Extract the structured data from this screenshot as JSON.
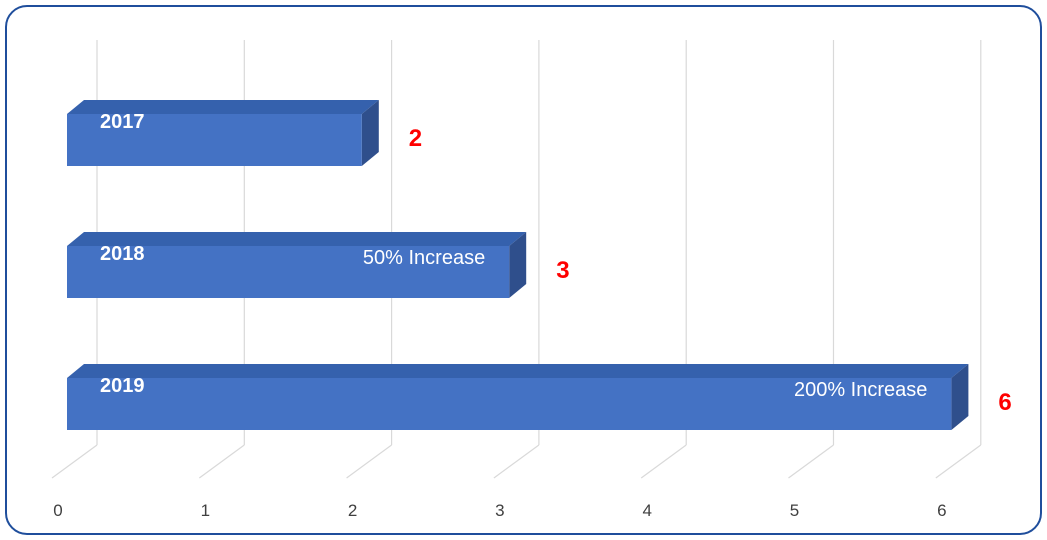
{
  "chart_data": {
    "type": "bar",
    "orientation": "horizontal",
    "style": "3d",
    "categories": [
      "2017",
      "2018",
      "2019"
    ],
    "values": [
      2,
      3,
      6
    ],
    "bar_annotations": [
      "",
      "50% Increase",
      "200% Increase"
    ],
    "value_labels": [
      "2",
      "3",
      "6"
    ],
    "x_ticks": [
      "0",
      "1",
      "2",
      "3",
      "4",
      "5",
      "6"
    ],
    "xlim": [
      0,
      6
    ],
    "grid": true,
    "legend": "none",
    "title": "",
    "xlabel": "",
    "ylabel": "",
    "colors": {
      "bar_front": "#4472c4",
      "bar_top": "#3561ad",
      "bar_side": "#2f4f8c",
      "value_label": "#ff0000",
      "category_label": "#ffffff",
      "tick_label": "#404040",
      "gridline": "#d9d9d9",
      "frame": "#1f4e9c"
    }
  }
}
